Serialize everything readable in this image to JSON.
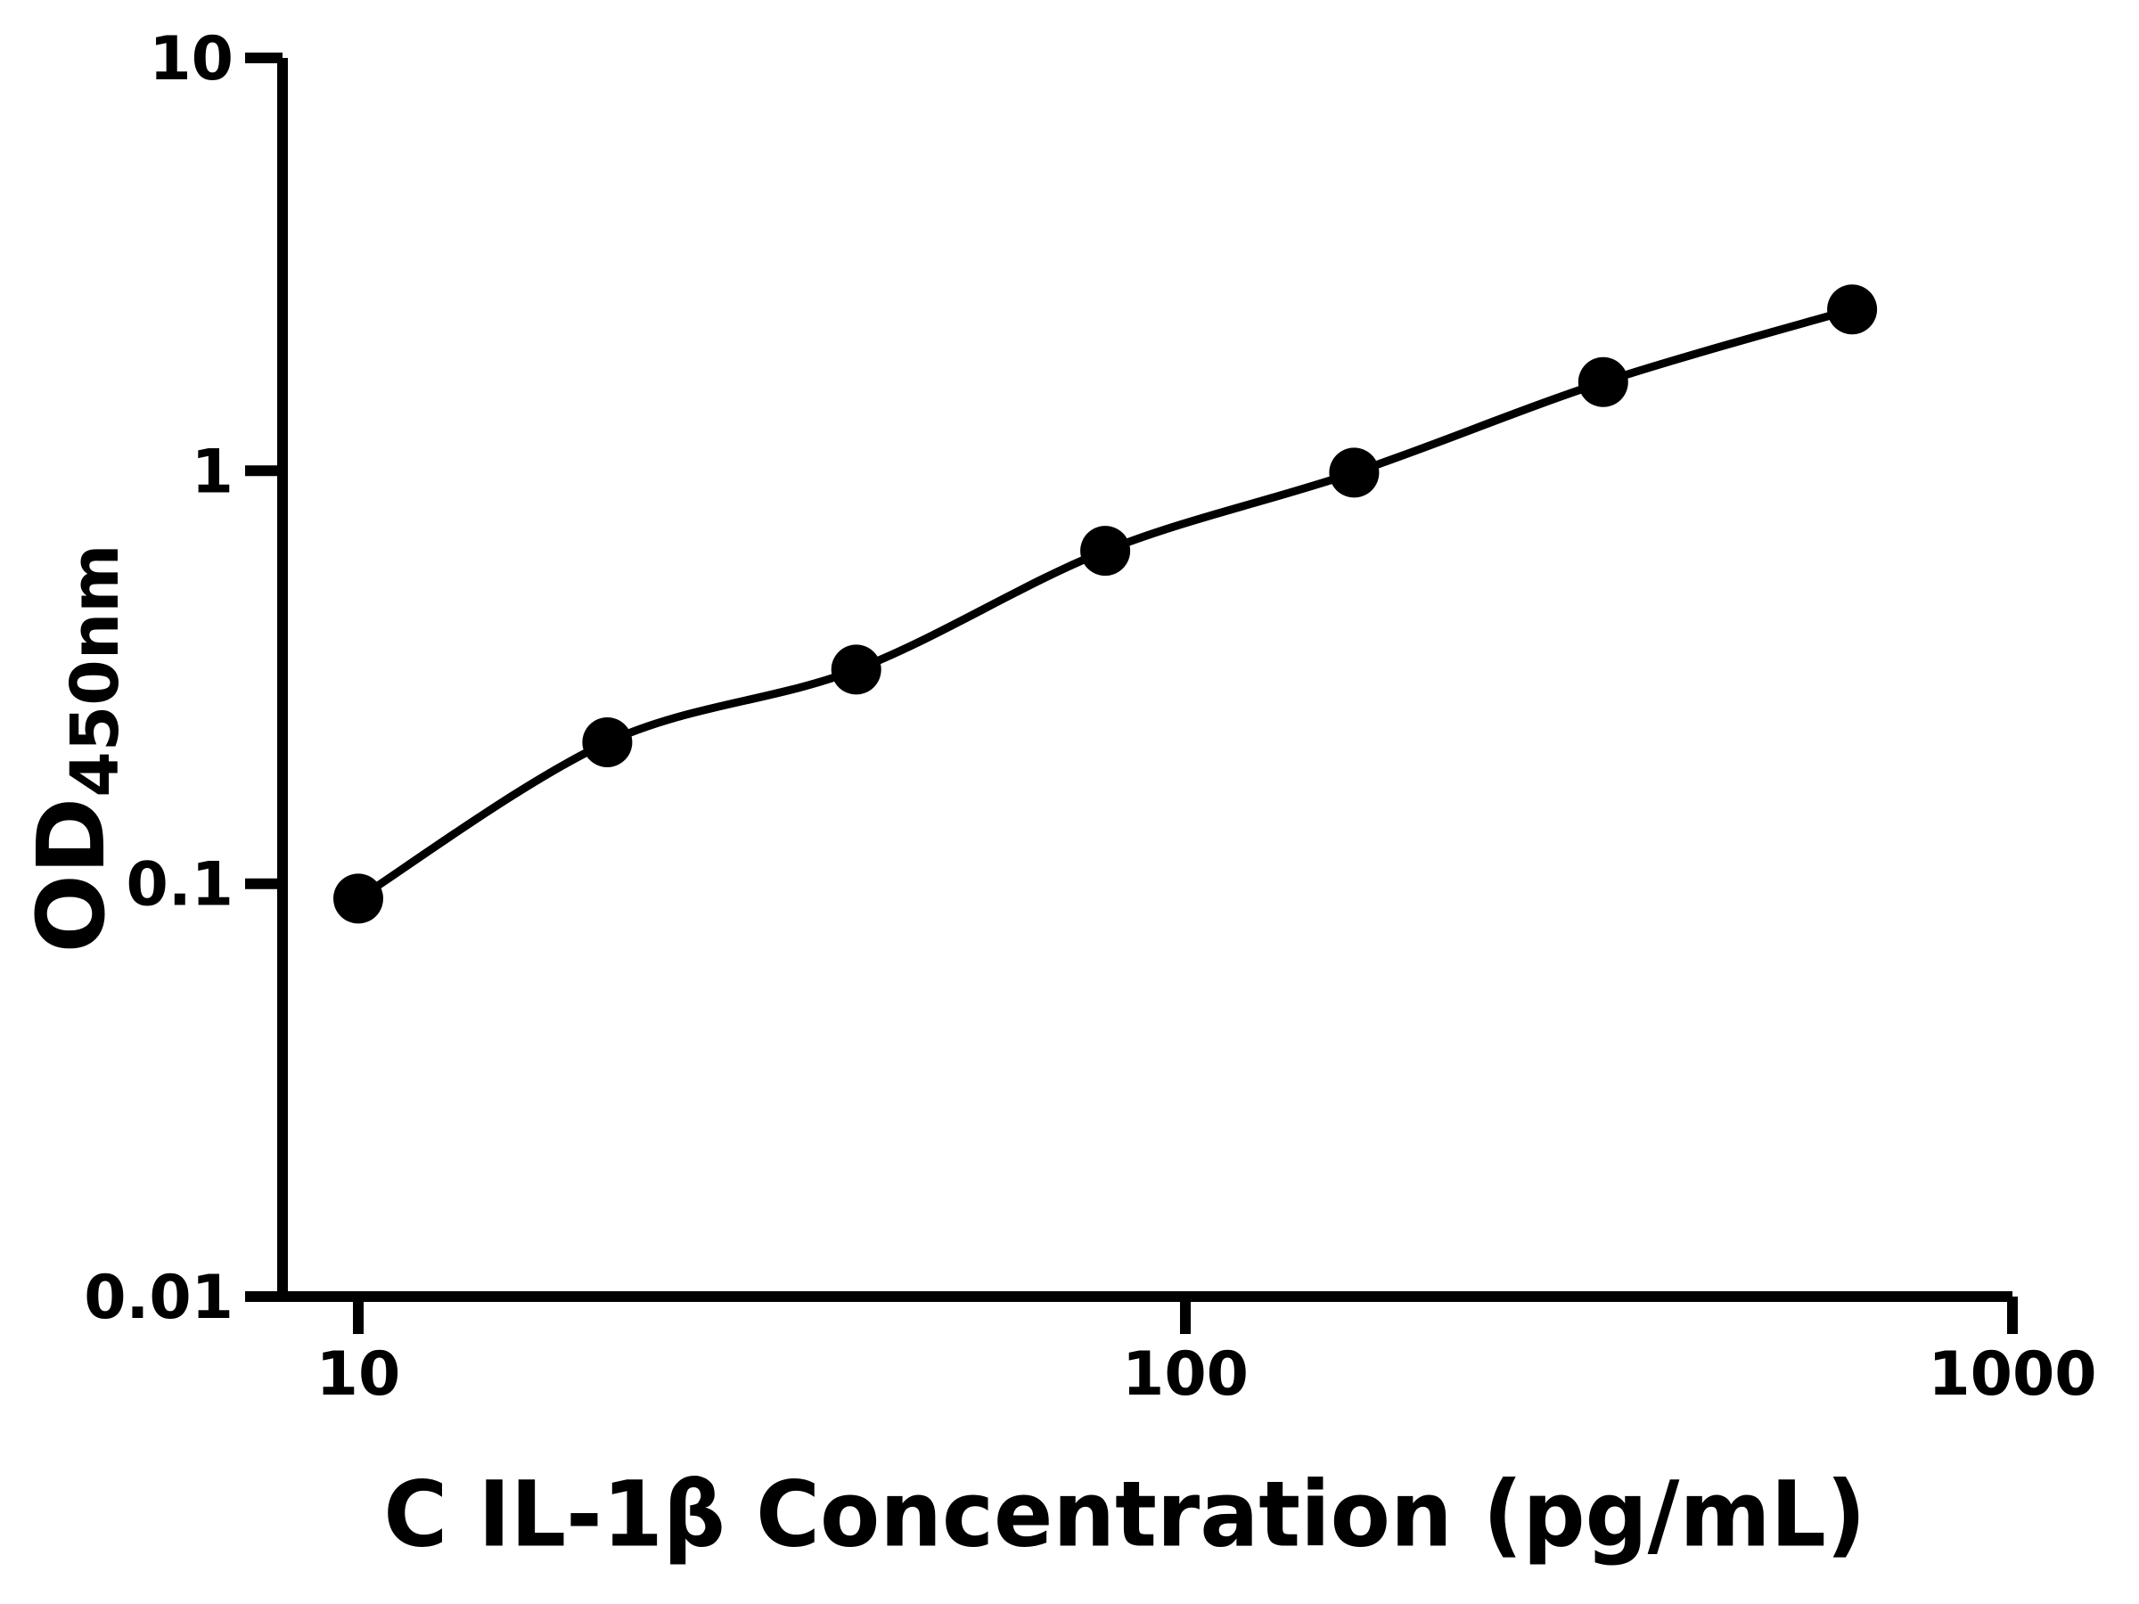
{
  "chart_data": {
    "type": "scatter",
    "series_name": "ELISA standard curve",
    "x": [
      10,
      20,
      40,
      80,
      160,
      320,
      640
    ],
    "y": [
      0.092,
      0.22,
      0.33,
      0.64,
      0.99,
      1.64,
      2.46
    ],
    "title": "",
    "xlabel": "C IL-1β Concentration (pg/mL)",
    "ylabel_main": "OD",
    "ylabel_sub": "450nm",
    "xscale": "log",
    "yscale": "log",
    "xlim": [
      8.1,
      1000
    ],
    "ylim": [
      0.01,
      10
    ],
    "xticks": [
      {
        "value": 10,
        "label": "10"
      },
      {
        "value": 100,
        "label": "100"
      },
      {
        "value": 1000,
        "label": "1000"
      }
    ],
    "yticks": [
      {
        "value": 10,
        "label": "10"
      },
      {
        "value": 1,
        "label": "1"
      },
      {
        "value": 0.1,
        "label": "0.1"
      },
      {
        "value": 0.01,
        "label": "0.01"
      }
    ],
    "grid": false,
    "legend": false,
    "marker": "filled-circle",
    "line": "smooth-fit-through-points",
    "colors": {
      "foreground": "#000000",
      "background": "#ffffff"
    }
  }
}
